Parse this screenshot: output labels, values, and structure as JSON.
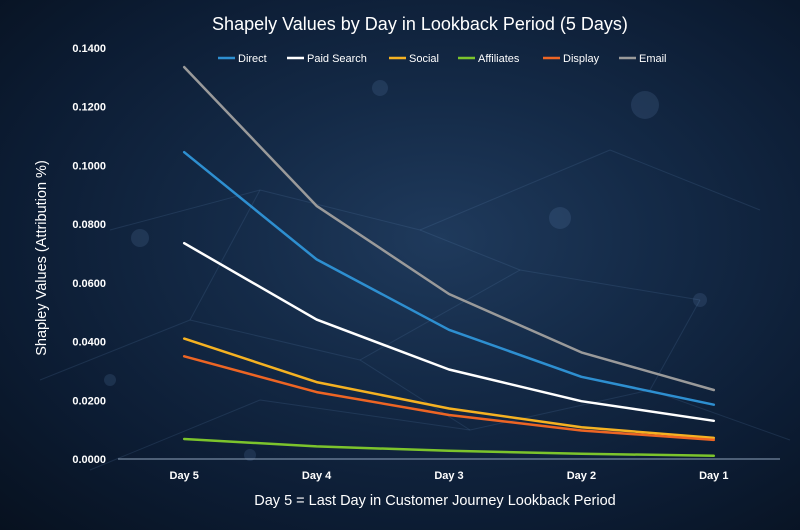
{
  "chart_data": {
    "type": "line",
    "title": "Shapely Values by Day in Lookback Period (5 Days)",
    "xlabel": "Day 5 = Last Day in Customer Journey Lookback Period",
    "ylabel": "Shapley Values (Attribution %)",
    "categories": [
      "Day 5",
      "Day 4",
      "Day 3",
      "Day 2",
      "Day 1"
    ],
    "ylim": [
      0,
      0.14
    ],
    "yticks": [
      "0.0000",
      "0.0200",
      "0.0400",
      "0.0600",
      "0.0800",
      "0.1000",
      "0.1200",
      "0.1400"
    ],
    "grid": false,
    "legend_position": "top",
    "series": [
      {
        "name": "Direct",
        "color": "#2e8fd0",
        "values": [
          0.1045,
          0.068,
          0.044,
          0.028,
          0.0185
        ]
      },
      {
        "name": "Paid Search",
        "color": "#ffffff",
        "values": [
          0.0735,
          0.0475,
          0.0305,
          0.0197,
          0.013
        ]
      },
      {
        "name": "Social",
        "color": "#f5b222",
        "values": [
          0.041,
          0.0262,
          0.0172,
          0.0108,
          0.0072
        ]
      },
      {
        "name": "Affiliates",
        "color": "#7cc42c",
        "values": [
          0.0068,
          0.0043,
          0.0028,
          0.0018,
          0.0011
        ]
      },
      {
        "name": "Display",
        "color": "#ed6524",
        "values": [
          0.035,
          0.0228,
          0.015,
          0.0097,
          0.0065
        ]
      },
      {
        "name": "Email",
        "color": "#9a9a9a",
        "values": [
          0.1335,
          0.0862,
          0.0562,
          0.0363,
          0.0235
        ]
      }
    ]
  }
}
